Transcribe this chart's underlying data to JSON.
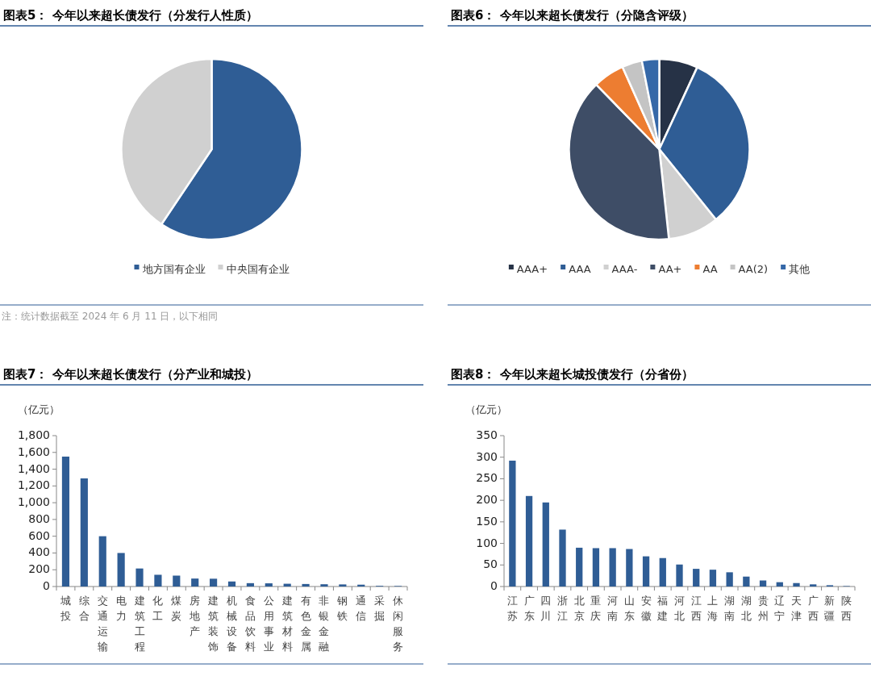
{
  "chart_data": [
    {
      "type": "pie",
      "title": "图表5：  今年以来超长债发行（分发行人性质）",
      "categories": [
        "地方国有企业",
        "中央国有企业"
      ],
      "values": [
        59.4,
        40.6
      ],
      "colors": [
        "#2f5d95",
        "#d0d0d0"
      ],
      "legend": "bottom",
      "annotations": [
        "注：统计数据截至 2024 年 6 月 11 日，以下相同"
      ]
    },
    {
      "type": "pie",
      "title": "图表6：  今年以来超长债发行（分隐含评级）",
      "categories": [
        "AAA+",
        "AAA",
        "AAA-",
        "AA+",
        "AA",
        "AA(2)",
        "其他"
      ],
      "values": [
        6.9,
        32.3,
        9.1,
        39.4,
        5.6,
        3.6,
        3.1
      ],
      "colors": [
        "#263246",
        "#2f5d95",
        "#d0d0d0",
        "#3e4d66",
        "#ed7d31",
        "#c4c4c4",
        "#3568a8"
      ],
      "legend": "bottom"
    },
    {
      "type": "bar",
      "title": "图表7：  今年以来超长债发行（分产业和城投）",
      "ylabel": "（亿元）",
      "color": "#2f5d95",
      "categories": [
        "城投",
        "综合",
        "交通运输",
        "电力",
        "建筑工程",
        "化工",
        "煤炭",
        "房地产",
        "建筑装饰",
        "机械设备",
        "食品饮料",
        "公用事业",
        "建筑材料",
        "有色金属",
        "非银金融",
        "钢铁",
        "通信",
        "采掘",
        "休闲服务"
      ],
      "values": [
        1550,
        1290,
        600,
        400,
        215,
        140,
        130,
        95,
        93,
        60,
        40,
        38,
        33,
        30,
        27,
        25,
        22,
        8,
        6
      ],
      "ylim": [
        0,
        1800
      ],
      "yticks": [
        0,
        200,
        400,
        600,
        800,
        {
          "value": 1000,
          "label": "1,000"
        },
        {
          "value": 1200,
          "label": "1,200"
        },
        {
          "value": 1400,
          "label": "1,400"
        },
        {
          "value": 1600,
          "label": "1,600"
        },
        {
          "value": 1800,
          "label": "1,800"
        }
      ]
    },
    {
      "type": "bar",
      "title": "图表8：  今年以来超长城投债发行（分省份）",
      "ylabel": "（亿元）",
      "color": "#2f5d95",
      "categories": [
        "江苏",
        "广东",
        "四川",
        "浙江",
        "北京",
        "重庆",
        "河南",
        "山东",
        "安徽",
        "福建",
        "河北",
        "江西",
        "上海",
        "湖南",
        "湖北",
        "贵州",
        "辽宁",
        "天津",
        "广西",
        "新疆",
        "陕西"
      ],
      "values": [
        292,
        210,
        195,
        132,
        90,
        89,
        89,
        87,
        70,
        66,
        51,
        41,
        39,
        33,
        23,
        14,
        10,
        8,
        5,
        3,
        1
      ],
      "ylim": [
        0,
        350
      ],
      "yticks": [
        0,
        50,
        100,
        150,
        200,
        250,
        300,
        350
      ]
    }
  ]
}
